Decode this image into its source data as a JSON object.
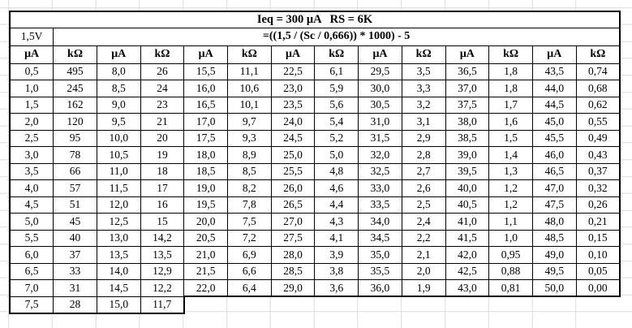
{
  "table": {
    "title": "Ieq = 300 μA   RS = 6K",
    "voltage_label": "1,5V",
    "formula": "=((1,5 / (Sc / 0,666)) * 1000) - 5",
    "unit_headers": [
      "μA",
      "kΩ",
      "μA",
      "kΩ",
      "μA",
      "kΩ",
      "μA",
      "kΩ",
      "μA",
      "kΩ",
      "μA",
      "kΩ",
      "μA",
      "kΩ"
    ],
    "data_rows": [
      [
        "0,5",
        "495",
        "8,0",
        "26",
        "15,5",
        "11,1",
        "22,5",
        "6,1",
        "29,5",
        "3,5",
        "36,5",
        "1,8",
        "43,5",
        "0,74"
      ],
      [
        "1,0",
        "245",
        "8,5",
        "24",
        "16,0",
        "10,6",
        "23,0",
        "5,9",
        "30,0",
        "3,3",
        "37,0",
        "1,8",
        "44,0",
        "0,68"
      ],
      [
        "1,5",
        "162",
        "9,0",
        "23",
        "16,5",
        "10,1",
        "23,5",
        "5,6",
        "30,5",
        "3,2",
        "37,5",
        "1,7",
        "44,5",
        "0,62"
      ],
      [
        "2,0",
        "120",
        "9,5",
        "21",
        "17,0",
        "9,7",
        "24,0",
        "5,4",
        "31,0",
        "3,1",
        "38,0",
        "1,6",
        "45,0",
        "0,55"
      ],
      [
        "2,5",
        "95",
        "10,0",
        "20",
        "17,5",
        "9,3",
        "24,5",
        "5,2",
        "31,5",
        "2,9",
        "38,5",
        "1,5",
        "45,5",
        "0,49"
      ],
      [
        "3,0",
        "78",
        "10,5",
        "19",
        "18,0",
        "8,9",
        "25,0",
        "5,0",
        "32,0",
        "2,8",
        "39,0",
        "1,4",
        "46,0",
        "0,43"
      ],
      [
        "3,5",
        "66",
        "11,0",
        "18",
        "18,5",
        "8,5",
        "25,5",
        "4,8",
        "32,5",
        "2,7",
        "39,5",
        "1,3",
        "46,5",
        "0,37"
      ],
      [
        "4,0",
        "57",
        "11,5",
        "17",
        "19,0",
        "8,2",
        "26,0",
        "4,6",
        "33,0",
        "2,6",
        "40,0",
        "1,2",
        "47,0",
        "0,32"
      ],
      [
        "4,5",
        "51",
        "12,0",
        "16",
        "19,5",
        "7,8",
        "26,5",
        "4,4",
        "33,5",
        "2,5",
        "40,5",
        "1,2",
        "47,5",
        "0,26"
      ],
      [
        "5,0",
        "45",
        "12,5",
        "15",
        "20,0",
        "7,5",
        "27,0",
        "4,3",
        "34,0",
        "2,4",
        "41,0",
        "1,1",
        "48,0",
        "0,21"
      ],
      [
        "5,5",
        "40",
        "13,0",
        "14,2",
        "20,5",
        "7,2",
        "27,5",
        "4,1",
        "34,5",
        "2,2",
        "41,5",
        "1,0",
        "48,5",
        "0,15"
      ],
      [
        "6,0",
        "37",
        "13,5",
        "13,5",
        "21,0",
        "6,9",
        "28,0",
        "3,9",
        "35,0",
        "2,1",
        "42,0",
        "0,95",
        "49,0",
        "0,10"
      ],
      [
        "6,5",
        "33",
        "14,0",
        "12,9",
        "21,5",
        "6,6",
        "28,5",
        "3,8",
        "35,5",
        "2,0",
        "42,5",
        "0,88",
        "49,5",
        "0,05"
      ],
      [
        "7,0",
        "31",
        "14,5",
        "12,2",
        "22,0",
        "6,4",
        "29,0",
        "3,6",
        "36,0",
        "1,9",
        "43,0",
        "0,81",
        "50,0",
        "0,00"
      ]
    ],
    "partial_row": [
      "7,5",
      "28",
      "15,0",
      "11,7"
    ]
  },
  "colors": {
    "border": "#000000",
    "text": "#000000",
    "gridline": "#dcdcdc",
    "background": "#ffffff"
  }
}
